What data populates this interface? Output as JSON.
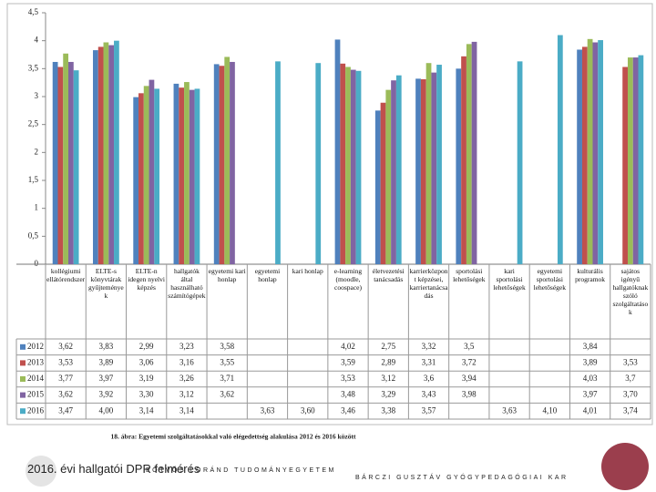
{
  "chart_data": {
    "type": "bar",
    "caption": "18. ábra: Egyetemi szolgáltatásokkal való elégedettség alakulása 2012 és 2016 között",
    "categories": [
      "kollégiumi ellátórendszer",
      "ELTE-s könyvtárak gyűjtemények",
      "ELTE-n idegen nyelvi képzés",
      "hallgatók által használható számítógépek",
      "egyetemi kari honlap",
      "egyetemi honlap",
      "kari honlap",
      "e-learning (moodle, coospace)",
      "életvezetési tanácsadás",
      "karrierközpont képzései, karriertanácsadás",
      "sportolási lehetőségek",
      "kari sportolási lehetőségek",
      "egyetemi sportolási lehetőségek",
      "kulturális programok",
      "sajátos igényű hallgatóknak szóló szolgáltatások"
    ],
    "series": [
      {
        "name": "2012",
        "color": "#4f81bd",
        "values": [
          3.62,
          3.83,
          2.99,
          3.23,
          3.58,
          null,
          null,
          4.02,
          2.75,
          3.32,
          3.5,
          null,
          null,
          3.84,
          null
        ],
        "value_labels": [
          "3,62",
          "3,83",
          "2,99",
          "3,23",
          "3,58",
          null,
          null,
          "4,02",
          "2,75",
          "3,32",
          "3,5",
          null,
          null,
          "3,84",
          null
        ]
      },
      {
        "name": "2013",
        "color": "#c0504d",
        "values": [
          3.53,
          3.89,
          3.06,
          3.16,
          3.55,
          null,
          null,
          3.59,
          2.89,
          3.31,
          3.72,
          null,
          null,
          3.89,
          3.53
        ],
        "value_labels": [
          "3,53",
          "3,89",
          "3,06",
          "3,16",
          "3,55",
          null,
          null,
          "3,59",
          "2,89",
          "3,31",
          "3,72",
          null,
          null,
          "3,89",
          "3,53"
        ]
      },
      {
        "name": "2014",
        "color": "#9bbb59",
        "values": [
          3.77,
          3.97,
          3.19,
          3.26,
          3.71,
          null,
          null,
          3.53,
          3.12,
          3.6,
          3.94,
          null,
          null,
          4.03,
          3.7
        ],
        "value_labels": [
          "3,77",
          "3,97",
          "3,19",
          "3,26",
          "3,71",
          null,
          null,
          "3,53",
          "3,12",
          "3,6",
          "3,94",
          null,
          null,
          "4,03",
          "3,7"
        ]
      },
      {
        "name": "2015",
        "color": "#8064a2",
        "values": [
          3.62,
          3.92,
          3.3,
          3.12,
          3.62,
          null,
          null,
          3.48,
          3.29,
          3.43,
          3.98,
          null,
          null,
          3.97,
          3.7
        ],
        "value_labels": [
          "3,62",
          "3,92",
          "3,30",
          "3,12",
          "3,62",
          null,
          null,
          "3,48",
          "3,29",
          "3,43",
          "3,98",
          null,
          null,
          "3,97",
          "3,70"
        ]
      },
      {
        "name": "2016",
        "color": "#4bacc6",
        "values": [
          3.47,
          4.0,
          3.14,
          3.14,
          null,
          3.63,
          3.6,
          3.46,
          3.38,
          3.57,
          null,
          3.63,
          4.1,
          4.01,
          3.74
        ],
        "value_labels": [
          "3,47",
          "4,00",
          "3,14",
          "3,14",
          null,
          "3,63",
          "3,60",
          "3,46",
          "3,38",
          "3,57",
          null,
          "3,63",
          "4,10",
          "4,01",
          "3,74"
        ]
      }
    ],
    "ylim": [
      0,
      4.5
    ],
    "yticks": [
      0,
      {
        "value": 0.5,
        "label": "0,5"
      },
      1,
      {
        "value": 1.5,
        "label": "1,5"
      },
      2,
      {
        "value": 2.5,
        "label": "2,5"
      },
      3,
      {
        "value": 3.5,
        "label": "3,5"
      },
      4,
      {
        "value": 4.5,
        "label": "4,5"
      }
    ],
    "grid": false
  },
  "footer": {
    "survey": "2016. évi hallgatói DPR felmérés",
    "university": "EÖTVÖS LORÁND TUDOMÁNYEGYETEM",
    "faculty": "BÁRCZI GUSZTÁV GYÓGYPEDAGÓGIAI KAR"
  }
}
